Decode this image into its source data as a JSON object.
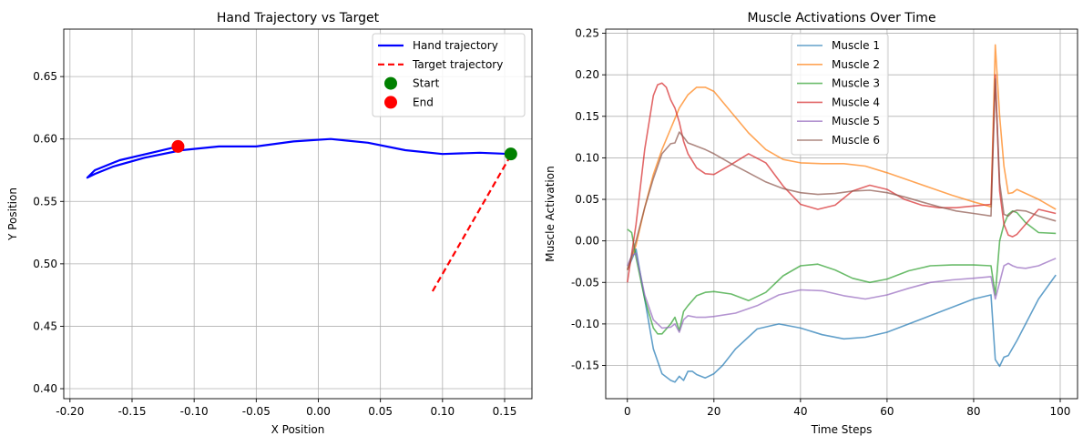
{
  "chart_data": [
    {
      "type": "line",
      "title": "Hand Trajectory vs Target",
      "xlabel": "X Position",
      "ylabel": "Y Position",
      "xlim": [
        -0.205,
        0.172
      ],
      "ylim": [
        0.392,
        0.688
      ],
      "xticks": [
        -0.2,
        -0.15,
        -0.1,
        -0.05,
        0.0,
        0.05,
        0.1,
        0.15
      ],
      "xtick_labels": [
        "-0.20",
        "-0.15",
        "-0.10",
        "-0.05",
        "0.00",
        "0.05",
        "0.10",
        "0.15"
      ],
      "yticks": [
        0.4,
        0.45,
        0.5,
        0.55,
        0.6,
        0.65
      ],
      "ytick_labels": [
        "0.40",
        "0.45",
        "0.50",
        "0.55",
        "0.60",
        "0.65"
      ],
      "grid": true,
      "legend_position": "upper right",
      "series": [
        {
          "name": "Hand trajectory",
          "kind": "line",
          "color": "#0000ff",
          "dash": "solid",
          "x": [
            0.155,
            0.13,
            0.1,
            0.07,
            0.04,
            0.01,
            -0.02,
            -0.05,
            -0.08,
            -0.11,
            -0.14,
            -0.165,
            -0.18,
            -0.186,
            -0.18,
            -0.16,
            -0.13,
            -0.113
          ],
          "y": [
            0.588,
            0.589,
            0.588,
            0.591,
            0.597,
            0.6,
            0.598,
            0.594,
            0.594,
            0.591,
            0.585,
            0.578,
            0.572,
            0.569,
            0.575,
            0.583,
            0.59,
            0.594
          ]
        },
        {
          "name": "Target trajectory",
          "kind": "line",
          "color": "#ff0000",
          "dash": "dashed",
          "x": [
            0.092,
            0.155
          ],
          "y": [
            0.478,
            0.587
          ]
        },
        {
          "name": "Start",
          "kind": "point",
          "color": "#008000",
          "x": [
            0.155
          ],
          "y": [
            0.588
          ]
        },
        {
          "name": "End",
          "kind": "point",
          "color": "#ff0000",
          "x": [
            -0.113
          ],
          "y": [
            0.594
          ]
        }
      ]
    },
    {
      "type": "line",
      "title": "Muscle Activations Over Time",
      "xlabel": "Time Steps",
      "ylabel": "Muscle Activation",
      "xlim": [
        -5,
        104
      ],
      "ylim": [
        -0.19,
        0.255
      ],
      "xticks": [
        0,
        20,
        40,
        60,
        80,
        100
      ],
      "xtick_labels": [
        "0",
        "20",
        "40",
        "60",
        "80",
        "100"
      ],
      "yticks": [
        -0.15,
        -0.1,
        -0.05,
        0.0,
        0.05,
        0.1,
        0.15,
        0.2,
        0.25
      ],
      "ytick_labels": [
        "-0.15",
        "-0.10",
        "-0.05",
        "0.00",
        "0.05",
        "0.10",
        "0.15",
        "0.20",
        "0.25"
      ],
      "grid": true,
      "legend_position": "upper center",
      "series": [
        {
          "name": "Muscle 1",
          "color": "#1f77b4",
          "x": [
            0,
            2,
            4,
            6,
            8,
            10,
            11,
            12,
            13,
            14,
            15,
            16,
            18,
            20,
            22,
            25,
            30,
            35,
            40,
            45,
            50,
            55,
            60,
            65,
            70,
            75,
            80,
            84,
            85,
            86,
            87,
            88,
            90,
            92,
            95,
            99
          ],
          "y": [
            -0.035,
            -0.01,
            -0.07,
            -0.13,
            -0.16,
            -0.168,
            -0.17,
            -0.163,
            -0.168,
            -0.157,
            -0.157,
            -0.161,
            -0.165,
            -0.16,
            -0.15,
            -0.13,
            -0.106,
            -0.1,
            -0.105,
            -0.113,
            -0.118,
            -0.116,
            -0.11,
            -0.1,
            -0.09,
            -0.08,
            -0.07,
            -0.065,
            -0.143,
            -0.151,
            -0.14,
            -0.138,
            -0.12,
            -0.1,
            -0.07,
            -0.041
          ]
        },
        {
          "name": "Muscle 2",
          "color": "#ff7f0e",
          "x": [
            0,
            2,
            4,
            6,
            8,
            10,
            12,
            14,
            16,
            18,
            20,
            24,
            28,
            32,
            36,
            40,
            45,
            50,
            55,
            60,
            65,
            70,
            75,
            80,
            84,
            85,
            86,
            87,
            88,
            89,
            90,
            95,
            99
          ],
          "y": [
            -0.035,
            -0.005,
            0.04,
            0.08,
            0.11,
            0.135,
            0.16,
            0.176,
            0.185,
            0.185,
            0.18,
            0.155,
            0.13,
            0.11,
            0.098,
            0.094,
            0.093,
            0.093,
            0.09,
            0.082,
            0.073,
            0.064,
            0.055,
            0.047,
            0.041,
            0.236,
            0.15,
            0.09,
            0.057,
            0.058,
            0.062,
            0.05,
            0.038
          ]
        },
        {
          "name": "Muscle 3",
          "color": "#2ca02c",
          "x": [
            0,
            1,
            2,
            4,
            6,
            7,
            8,
            10,
            11,
            12,
            13,
            14,
            16,
            18,
            20,
            24,
            28,
            32,
            36,
            40,
            44,
            48,
            52,
            56,
            60,
            65,
            70,
            75,
            80,
            84,
            85,
            86,
            87,
            88,
            89,
            90,
            92,
            95,
            99
          ],
          "y": [
            0.014,
            0.01,
            -0.02,
            -0.07,
            -0.105,
            -0.112,
            -0.112,
            -0.1,
            -0.092,
            -0.108,
            -0.085,
            -0.078,
            -0.066,
            -0.062,
            -0.061,
            -0.064,
            -0.072,
            -0.062,
            -0.042,
            -0.03,
            -0.028,
            -0.035,
            -0.045,
            -0.05,
            -0.046,
            -0.036,
            -0.03,
            -0.029,
            -0.029,
            -0.03,
            -0.065,
            0.0,
            0.02,
            0.032,
            0.036,
            0.034,
            0.022,
            0.01,
            0.009
          ]
        },
        {
          "name": "Muscle 4",
          "color": "#d62728",
          "x": [
            0,
            2,
            4,
            6,
            7,
            8,
            9,
            10,
            11,
            12,
            13,
            14,
            16,
            18,
            20,
            24,
            28,
            32,
            36,
            40,
            44,
            48,
            52,
            56,
            60,
            64,
            68,
            72,
            76,
            80,
            84,
            85,
            86,
            87,
            88,
            89,
            90,
            92,
            95,
            99
          ],
          "y": [
            -0.05,
            0.02,
            0.11,
            0.175,
            0.188,
            0.19,
            0.185,
            0.17,
            0.16,
            0.143,
            0.12,
            0.105,
            0.088,
            0.081,
            0.08,
            0.092,
            0.105,
            0.094,
            0.066,
            0.044,
            0.038,
            0.043,
            0.06,
            0.067,
            0.062,
            0.05,
            0.043,
            0.04,
            0.04,
            0.042,
            0.044,
            0.2,
            0.06,
            0.02,
            0.007,
            0.005,
            0.008,
            0.02,
            0.038,
            0.033
          ]
        },
        {
          "name": "Muscle 5",
          "color": "#9467bd",
          "x": [
            0,
            1,
            2,
            4,
            6,
            8,
            10,
            11,
            12,
            13,
            14,
            16,
            18,
            20,
            25,
            30,
            35,
            40,
            45,
            50,
            55,
            60,
            65,
            70,
            75,
            80,
            84,
            85,
            86,
            87,
            88,
            89,
            90,
            92,
            95,
            99
          ],
          "y": [
            -0.03,
            -0.018,
            -0.015,
            -0.065,
            -0.095,
            -0.105,
            -0.104,
            -0.1,
            -0.11,
            -0.095,
            -0.09,
            -0.092,
            -0.092,
            -0.091,
            -0.087,
            -0.078,
            -0.065,
            -0.059,
            -0.06,
            -0.066,
            -0.07,
            -0.065,
            -0.057,
            -0.05,
            -0.047,
            -0.045,
            -0.043,
            -0.07,
            -0.05,
            -0.03,
            -0.027,
            -0.03,
            -0.032,
            -0.033,
            -0.03,
            -0.021
          ]
        },
        {
          "name": "Muscle 6",
          "color": "#8c564b",
          "x": [
            0,
            2,
            4,
            6,
            8,
            10,
            11,
            12,
            13,
            14,
            16,
            18,
            20,
            24,
            28,
            32,
            36,
            40,
            44,
            48,
            52,
            56,
            60,
            64,
            68,
            72,
            76,
            80,
            84,
            85,
            86,
            87,
            88,
            89,
            90,
            92,
            95,
            99
          ],
          "y": [
            -0.035,
            0.0,
            0.04,
            0.075,
            0.105,
            0.117,
            0.118,
            0.131,
            0.125,
            0.118,
            0.114,
            0.11,
            0.105,
            0.093,
            0.082,
            0.071,
            0.063,
            0.058,
            0.056,
            0.057,
            0.06,
            0.061,
            0.058,
            0.053,
            0.047,
            0.041,
            0.036,
            0.033,
            0.03,
            0.195,
            0.07,
            0.032,
            0.03,
            0.035,
            0.037,
            0.036,
            0.03,
            0.024
          ]
        }
      ]
    }
  ]
}
